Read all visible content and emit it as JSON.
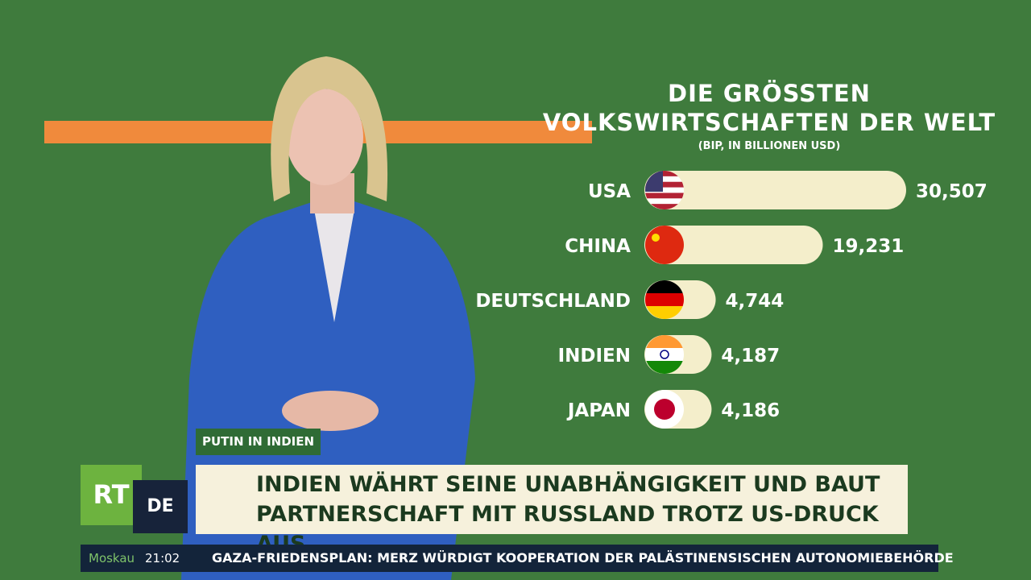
{
  "chart_data": {
    "type": "bar",
    "orientation": "horizontal",
    "title": "DIE GRÖSSTEN VOLKSWIRTSCHAFTEN DER WELT",
    "subtitle": "(BIP, IN BILLIONEN USD)",
    "categories": [
      "USA",
      "CHINA",
      "DEUTSCHLAND",
      "INDIEN",
      "JAPAN"
    ],
    "values": [
      30507,
      19231,
      4744,
      4187,
      4186
    ],
    "value_labels": [
      "30,507",
      "19,231",
      "4,744",
      "4,187",
      "4,186"
    ],
    "color": "#f4eecb"
  },
  "lower_third": {
    "tag": "PUTIN IN INDIEN",
    "headline": "INDIEN WÄHRT SEINE UNABHÄNGIGKEIT UND BAUT PARTNERSCHAFT MIT RUSSLAND TROTZ US-DRUCK AUS"
  },
  "logo": {
    "main": "RT",
    "sub": "DE"
  },
  "ticker": {
    "city": "Moskau",
    "time": "21:02",
    "text": "GAZA-FRIEDENSPLAN: MERZ WÜRDIGT KOOPERATION DER PALÄSTINENSISCHEN AUTONOMIEBEHÖRDE"
  }
}
